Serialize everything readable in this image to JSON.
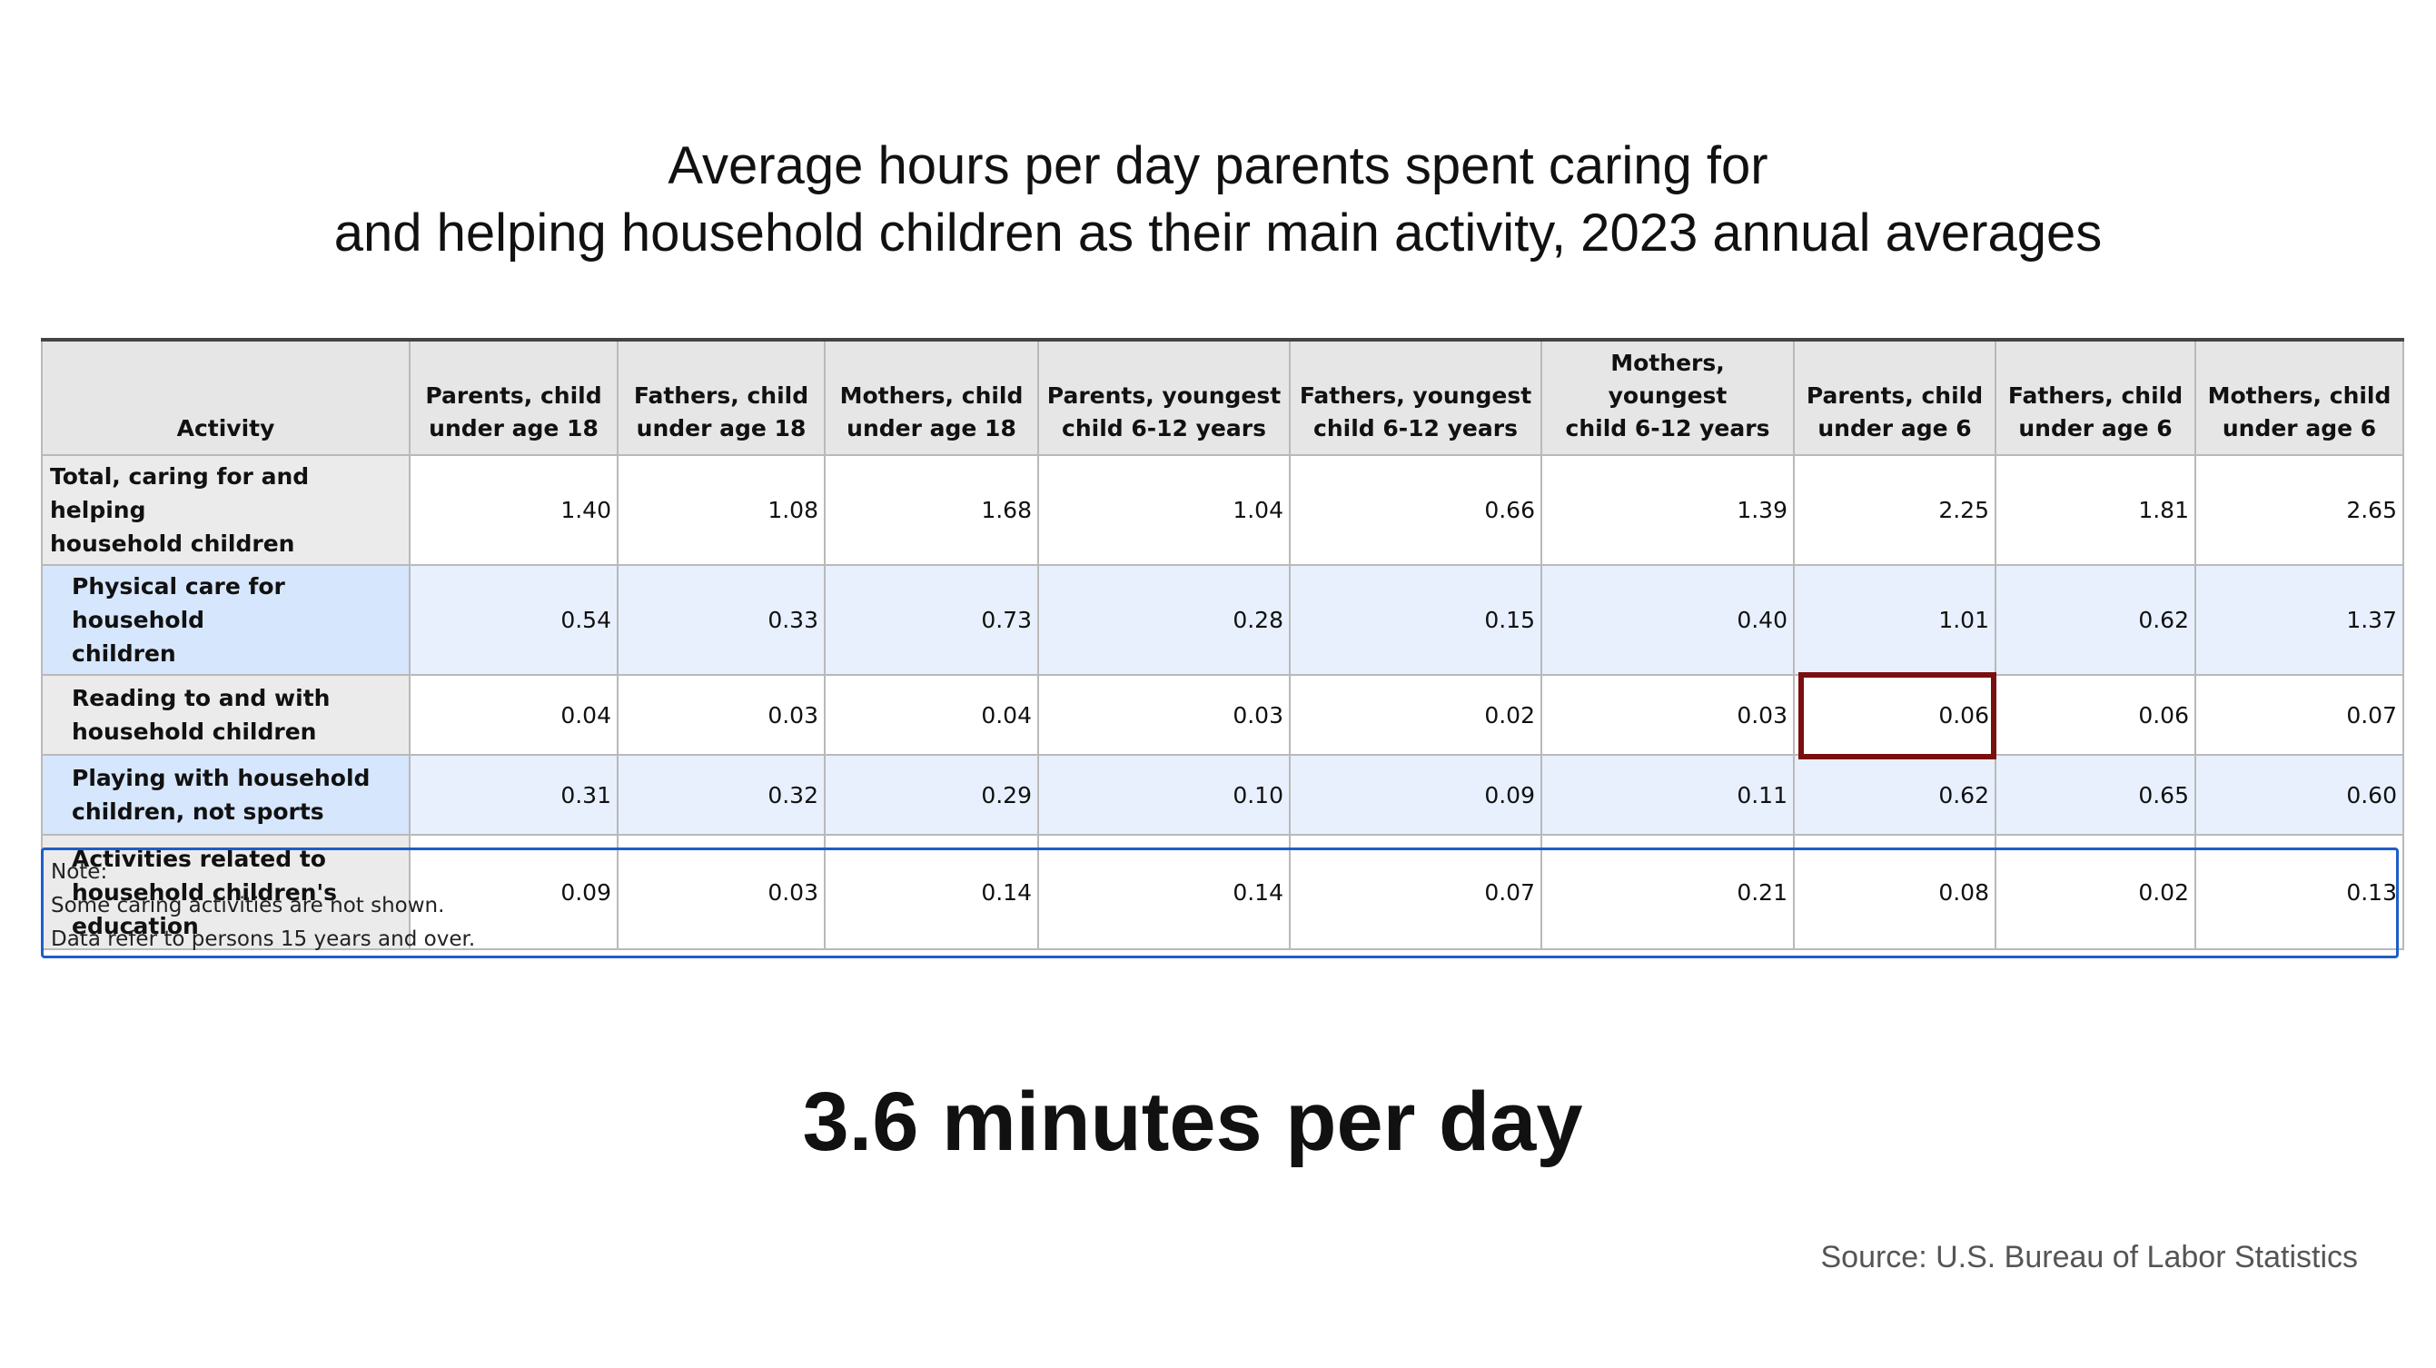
{
  "title": {
    "line1": "Average hours per day parents spent caring for",
    "line2": "and helping household children as their main activity, 2023 annual averages"
  },
  "table": {
    "headers": [
      [
        "Activity"
      ],
      [
        "Parents, child",
        "under age 18"
      ],
      [
        "Fathers, child",
        "under age 18"
      ],
      [
        "Mothers, child",
        "under age 18"
      ],
      [
        "Parents, youngest",
        "child 6-12 years"
      ],
      [
        "Fathers, youngest",
        "child 6-12 years"
      ],
      [
        "Mothers, youngest",
        "child 6-12 years"
      ],
      [
        "Parents, child",
        "under age 6"
      ],
      [
        "Fathers, child",
        "under age 6"
      ],
      [
        "Mothers, child",
        "under age 6"
      ]
    ],
    "rows": [
      {
        "label": [
          "Total, caring for and helping",
          "household children"
        ],
        "values": [
          "1.40",
          "1.08",
          "1.68",
          "1.04",
          "0.66",
          "1.39",
          "2.25",
          "1.81",
          "2.65"
        ]
      },
      {
        "label": [
          "Physical care for household",
          "children"
        ],
        "values": [
          "0.54",
          "0.33",
          "0.73",
          "0.28",
          "0.15",
          "0.40",
          "1.01",
          "0.62",
          "1.37"
        ]
      },
      {
        "label": [
          "Reading to and with",
          "household children"
        ],
        "values": [
          "0.04",
          "0.03",
          "0.04",
          "0.03",
          "0.02",
          "0.03",
          "0.06",
          "0.06",
          "0.07"
        ]
      },
      {
        "label": [
          "Playing with household",
          "children, not sports"
        ],
        "values": [
          "0.31",
          "0.32",
          "0.29",
          "0.10",
          "0.09",
          "0.11",
          "0.62",
          "0.65",
          "0.60"
        ]
      },
      {
        "label": [
          "Activities related to",
          "household children's",
          "education"
        ],
        "values": [
          "0.09",
          "0.03",
          "0.14",
          "0.14",
          "0.07",
          "0.21",
          "0.08",
          "0.02",
          "0.13"
        ]
      }
    ],
    "highlight_color": "#7a0f0f"
  },
  "note": {
    "heading": "Note:",
    "line1": "Some caring activities are not shown.",
    "line2": "Data refer to persons 15 years and over."
  },
  "headline": "3.6 minutes per day",
  "source": "Source: U.S. Bureau of Labor Statistics"
}
